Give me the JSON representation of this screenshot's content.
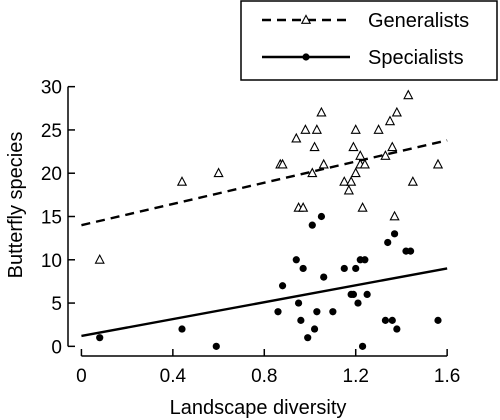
{
  "chart_data": {
    "type": "scatter",
    "xlabel": "Landscape diversity",
    "ylabel": "Butterfly species",
    "xlim": [
      -0.05,
      1.7
    ],
    "ylim": [
      -1,
      31
    ],
    "xticks": [
      0,
      0.4,
      0.8,
      1.2,
      1.6
    ],
    "xtick_labels": [
      "0",
      "0.4",
      "0.8",
      "1.2",
      "1.6"
    ],
    "yticks": [
      0,
      5,
      10,
      15,
      20,
      25,
      30
    ],
    "ytick_labels": [
      "0",
      "5",
      "10",
      "15",
      "20",
      "25",
      "30"
    ],
    "grid": false,
    "legend_position": "top-right",
    "series": [
      {
        "name": "Generalists",
        "marker": "open-triangle",
        "line_style": "dashed",
        "color": "#000000",
        "fit": {
          "x": [
            0,
            1.6
          ],
          "y": [
            14,
            23.8
          ]
        },
        "points": [
          [
            0.08,
            10
          ],
          [
            0.44,
            19
          ],
          [
            0.6,
            20
          ],
          [
            0.87,
            21
          ],
          [
            0.88,
            21
          ],
          [
            0.94,
            24
          ],
          [
            0.95,
            16
          ],
          [
            0.97,
            16
          ],
          [
            0.98,
            25
          ],
          [
            1.01,
            20
          ],
          [
            1.02,
            23
          ],
          [
            1.03,
            25
          ],
          [
            1.05,
            27
          ],
          [
            1.06,
            21
          ],
          [
            1.15,
            19
          ],
          [
            1.17,
            18
          ],
          [
            1.18,
            19
          ],
          [
            1.19,
            23
          ],
          [
            1.2,
            25
          ],
          [
            1.2,
            20
          ],
          [
            1.22,
            21
          ],
          [
            1.22,
            22
          ],
          [
            1.23,
            16
          ],
          [
            1.24,
            21
          ],
          [
            1.3,
            25
          ],
          [
            1.33,
            22
          ],
          [
            1.35,
            26
          ],
          [
            1.36,
            23
          ],
          [
            1.37,
            15
          ],
          [
            1.38,
            27
          ],
          [
            1.43,
            29
          ],
          [
            1.45,
            19
          ],
          [
            1.56,
            21
          ]
        ]
      },
      {
        "name": "Specialists",
        "marker": "filled-circle",
        "line_style": "solid",
        "color": "#000000",
        "fit": {
          "x": [
            0,
            1.6
          ],
          "y": [
            1.2,
            9
          ]
        },
        "points": [
          [
            0.08,
            1
          ],
          [
            0.44,
            2
          ],
          [
            0.59,
            0
          ],
          [
            0.86,
            4
          ],
          [
            0.88,
            7
          ],
          [
            0.94,
            10
          ],
          [
            0.95,
            5
          ],
          [
            0.96,
            3
          ],
          [
            0.97,
            9
          ],
          [
            0.99,
            1
          ],
          [
            1.01,
            14
          ],
          [
            1.02,
            2
          ],
          [
            1.03,
            4
          ],
          [
            1.05,
            15
          ],
          [
            1.06,
            8
          ],
          [
            1.1,
            4
          ],
          [
            1.15,
            9
          ],
          [
            1.18,
            6
          ],
          [
            1.19,
            6
          ],
          [
            1.2,
            9
          ],
          [
            1.21,
            5
          ],
          [
            1.22,
            10
          ],
          [
            1.23,
            0
          ],
          [
            1.24,
            10
          ],
          [
            1.25,
            6
          ],
          [
            1.33,
            3
          ],
          [
            1.34,
            12
          ],
          [
            1.36,
            3
          ],
          [
            1.37,
            13
          ],
          [
            1.38,
            2
          ],
          [
            1.42,
            11
          ],
          [
            1.44,
            11
          ],
          [
            1.56,
            3
          ]
        ]
      }
    ]
  }
}
